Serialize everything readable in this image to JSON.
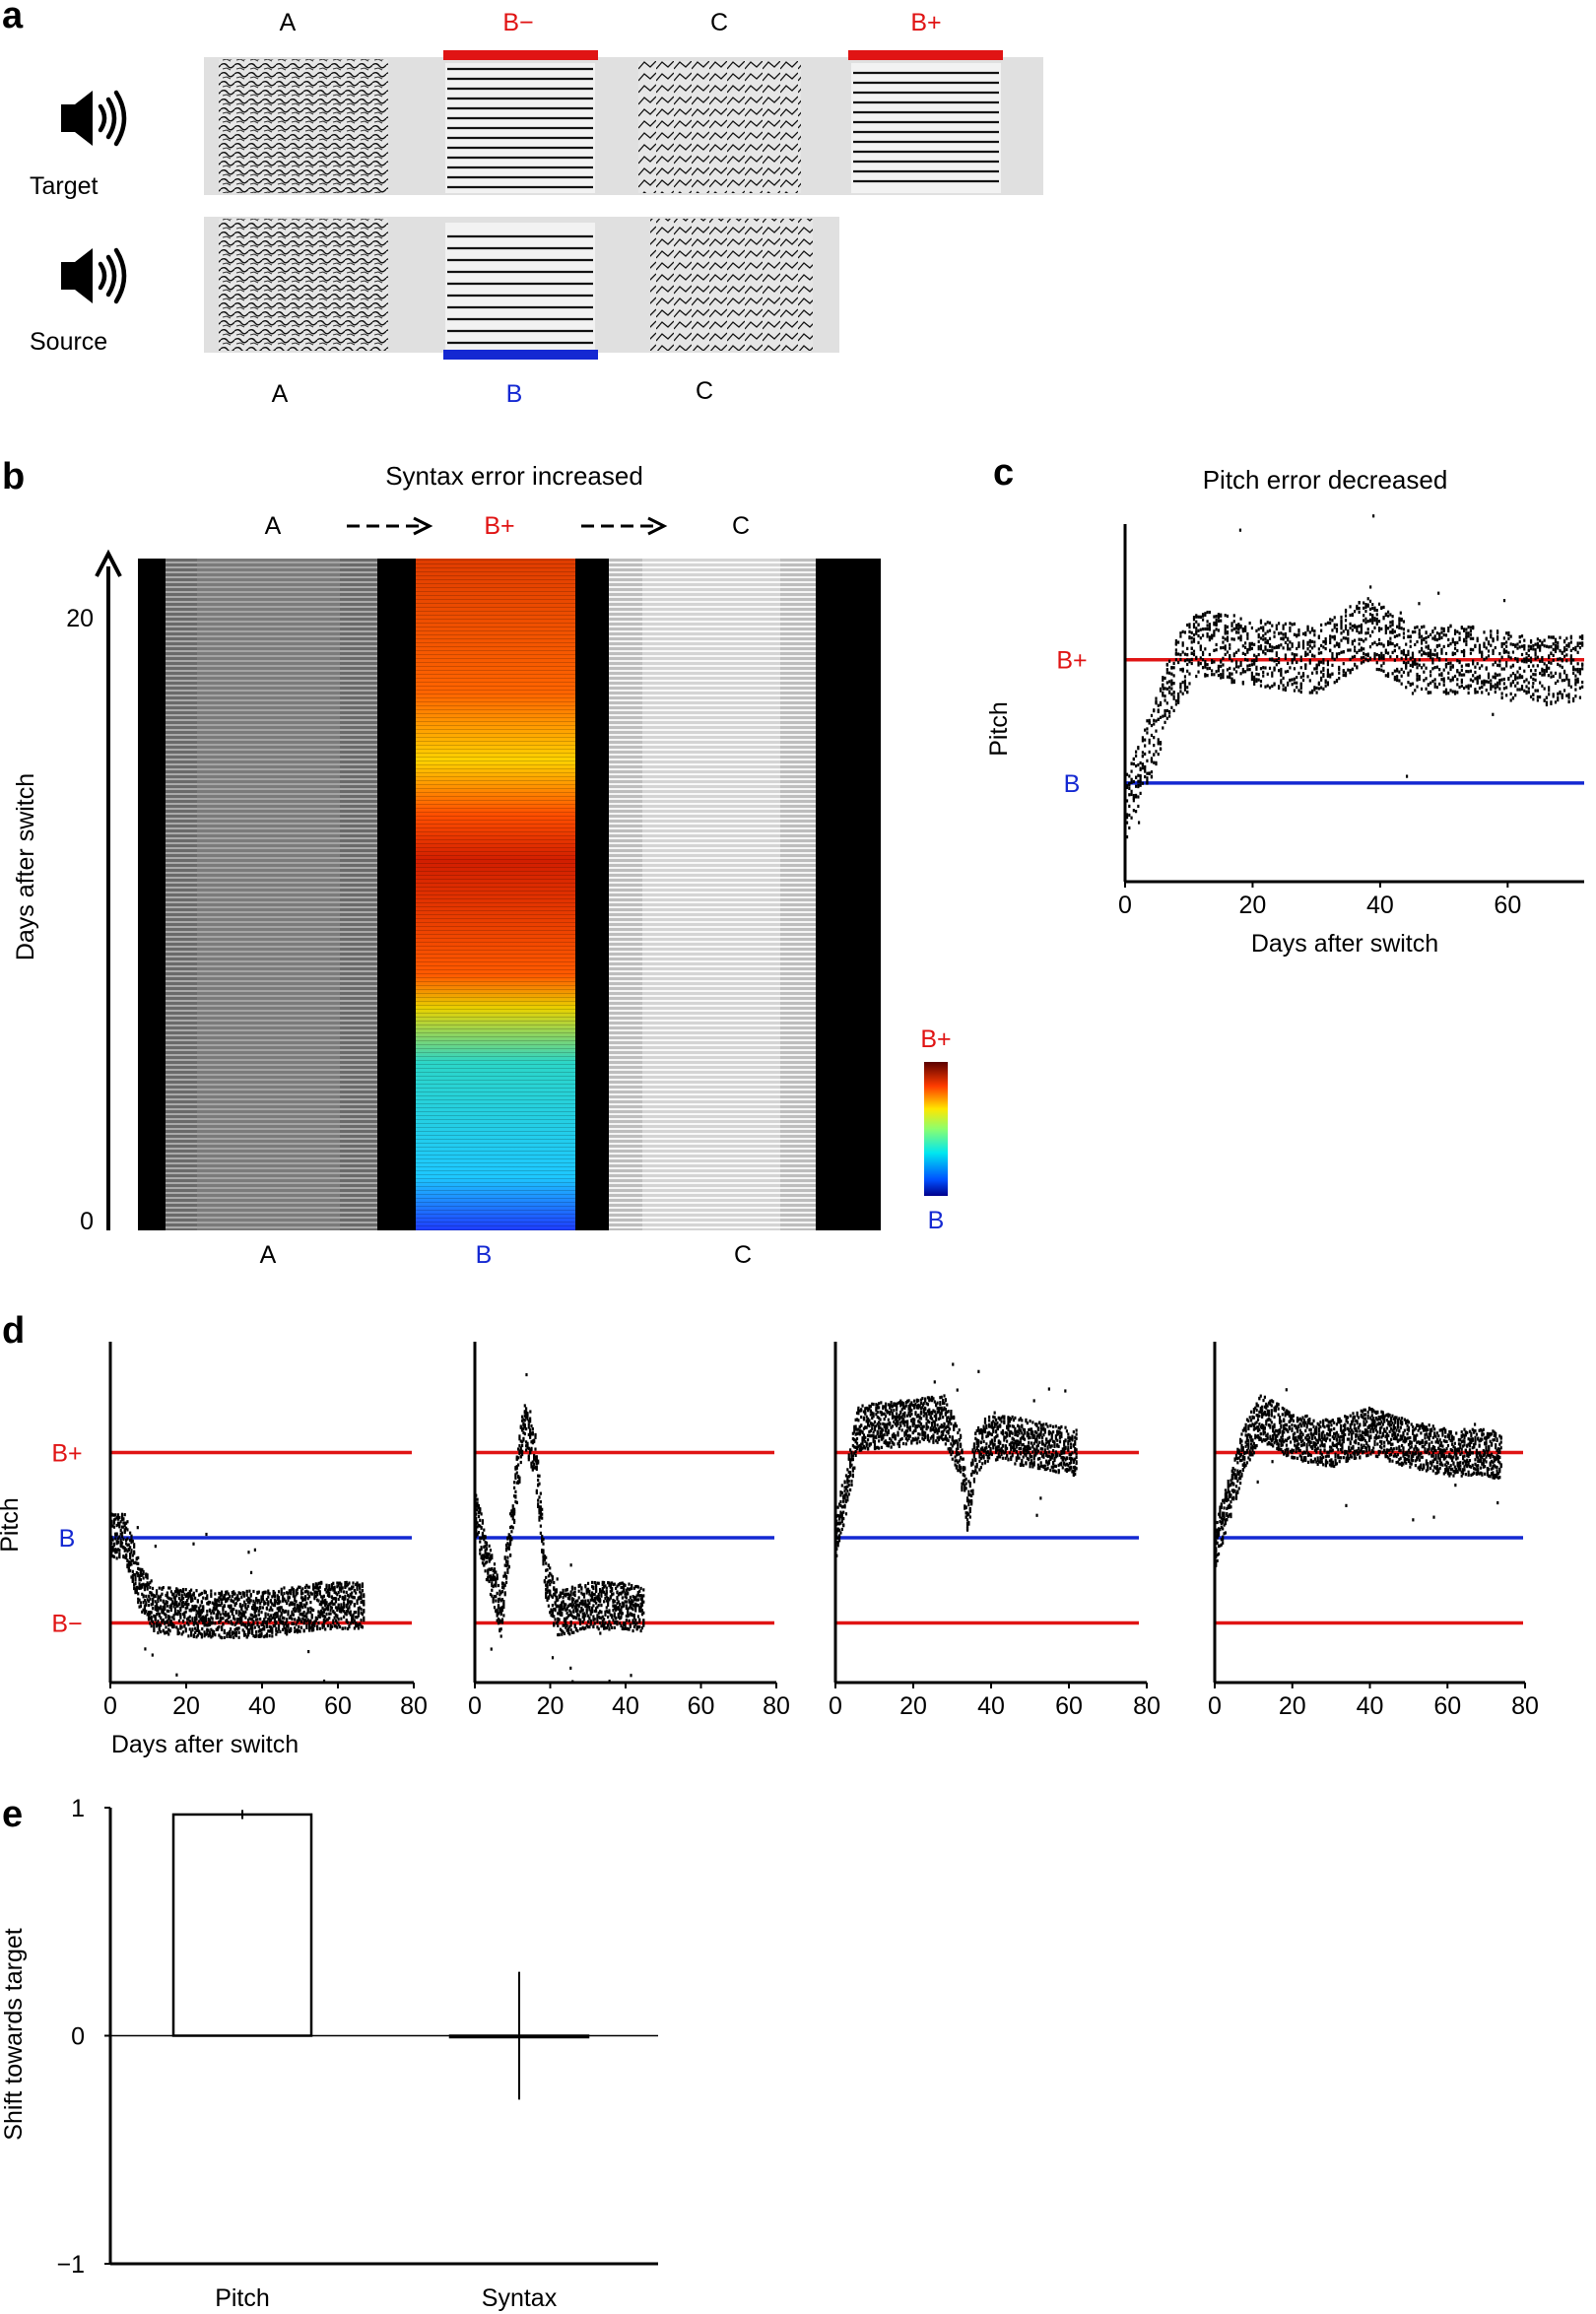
{
  "panels": {
    "a": {
      "label": "a",
      "target_label": "Target",
      "source_label": "Source",
      "target_syllables": [
        "A",
        "B−",
        "C",
        "B+"
      ],
      "source_syllables_top": [],
      "source_syllables": [
        "A",
        "B",
        "C"
      ],
      "icons": [
        "speaker-icon",
        "speaker-icon"
      ]
    },
    "b": {
      "label": "b",
      "title": "Syntax error increased",
      "top_labels": [
        "A",
        "B+",
        "C"
      ],
      "bottom_labels": [
        "A",
        "B",
        "C"
      ],
      "ylabel": "Days after switch",
      "yticks": [
        "0",
        "20"
      ],
      "colorbar_top": "B+",
      "colorbar_bottom": "B"
    },
    "c": {
      "label": "c"
    },
    "d": {
      "label": "d"
    },
    "e": {
      "label": "e"
    }
  },
  "colors": {
    "red": "#e01414",
    "blue": "#1428d2",
    "black": "#000000"
  },
  "chart_data": [
    {
      "id": "c",
      "type": "scatter",
      "title": "Pitch error decreased",
      "xlabel": "Days after switch",
      "ylabel": "Pitch",
      "xlim": [
        0,
        72
      ],
      "xticks": [
        0,
        20,
        40,
        60
      ],
      "reference_lines": [
        {
          "name": "B+",
          "color": "#e01414",
          "y": 1
        },
        {
          "name": "B",
          "color": "#1428d2",
          "y": 0
        }
      ],
      "pitch_trajectory": {
        "x": [
          0,
          4,
          8,
          12,
          20,
          30,
          38,
          45,
          55,
          65,
          72
        ],
        "y": [
          -0.2,
          0.3,
          0.9,
          1.15,
          1.05,
          1.0,
          1.25,
          1.0,
          1.0,
          0.9,
          0.95
        ]
      },
      "ylim": [
        -0.8,
        2.1
      ]
    },
    {
      "id": "d1",
      "type": "scatter",
      "xlabel": "Days after switch",
      "ylabel": "Pitch",
      "xlim": [
        0,
        80
      ],
      "xticks": [
        0,
        20,
        40,
        60,
        80
      ],
      "ylabels": [
        "B+",
        "B",
        "B−"
      ],
      "reference_lines": [
        {
          "name": "B+",
          "color": "#e01414",
          "y": 1
        },
        {
          "name": "B",
          "color": "#1428d2",
          "y": 0
        },
        {
          "name": "B−",
          "color": "#e01414",
          "y": -1
        }
      ],
      "pitch_trajectory": {
        "x": [
          0,
          4,
          8,
          12,
          25,
          40,
          55,
          67
        ],
        "y": [
          0.05,
          0.0,
          -0.6,
          -0.85,
          -0.9,
          -0.9,
          -0.8,
          -0.8
        ]
      },
      "ylim": [
        -1.7,
        2.3
      ]
    },
    {
      "id": "d2",
      "type": "scatter",
      "xlim": [
        0,
        80
      ],
      "xticks": [
        0,
        20,
        40,
        60,
        80
      ],
      "reference_lines": [
        {
          "name": "B+",
          "color": "#e01414",
          "y": 1
        },
        {
          "name": "B",
          "color": "#1428d2",
          "y": 0
        },
        {
          "name": "B−",
          "color": "#e01414",
          "y": -1
        }
      ],
      "pitch_trajectory": {
        "x": [
          0,
          3,
          7,
          10,
          13,
          16,
          19,
          22,
          30,
          40,
          45
        ],
        "y": [
          0.3,
          -0.2,
          -0.9,
          0.3,
          1.3,
          1.0,
          -0.5,
          -0.9,
          -0.8,
          -0.8,
          -0.85
        ]
      },
      "ylim": [
        -1.7,
        2.3
      ]
    },
    {
      "id": "d3",
      "type": "scatter",
      "xlim": [
        0,
        80
      ],
      "xticks": [
        0,
        20,
        40,
        60,
        80
      ],
      "reference_lines": [
        {
          "name": "B+",
          "color": "#e01414",
          "y": 1
        },
        {
          "name": "B",
          "color": "#1428d2",
          "y": 0
        },
        {
          "name": "B−",
          "color": "#e01414",
          "y": -1
        }
      ],
      "pitch_trajectory": {
        "x": [
          0,
          3,
          6,
          10,
          20,
          28,
          32,
          34,
          36,
          40,
          50,
          62
        ],
        "y": [
          0.0,
          0.6,
          1.3,
          1.3,
          1.35,
          1.4,
          1.0,
          0.3,
          1.0,
          1.2,
          1.1,
          1.0
        ]
      },
      "ylim": [
        -1.7,
        2.3
      ]
    },
    {
      "id": "d4",
      "type": "scatter",
      "xlim": [
        0,
        80
      ],
      "xticks": [
        0,
        20,
        40,
        60,
        80
      ],
      "reference_lines": [
        {
          "name": "B+",
          "color": "#e01414",
          "y": 1
        },
        {
          "name": "B",
          "color": "#1428d2",
          "y": 0
        },
        {
          "name": "B−",
          "color": "#e01414",
          "y": -1
        }
      ],
      "pitch_trajectory": {
        "x": [
          0,
          4,
          8,
          12,
          20,
          30,
          40,
          50,
          60,
          70,
          74
        ],
        "y": [
          -0.1,
          0.5,
          1.1,
          1.4,
          1.2,
          1.1,
          1.25,
          1.1,
          1.0,
          1.0,
          0.95
        ]
      },
      "ylim": [
        -1.7,
        2.3
      ]
    },
    {
      "id": "e",
      "type": "bar",
      "categories": [
        "Pitch",
        "Syntax"
      ],
      "values": [
        0.97,
        0.0
      ],
      "errors": [
        0.02,
        0.28
      ],
      "ylabel": "Shift towards target",
      "ylim": [
        -1,
        1
      ],
      "yticks": [
        "−1",
        "0",
        "1"
      ]
    }
  ]
}
